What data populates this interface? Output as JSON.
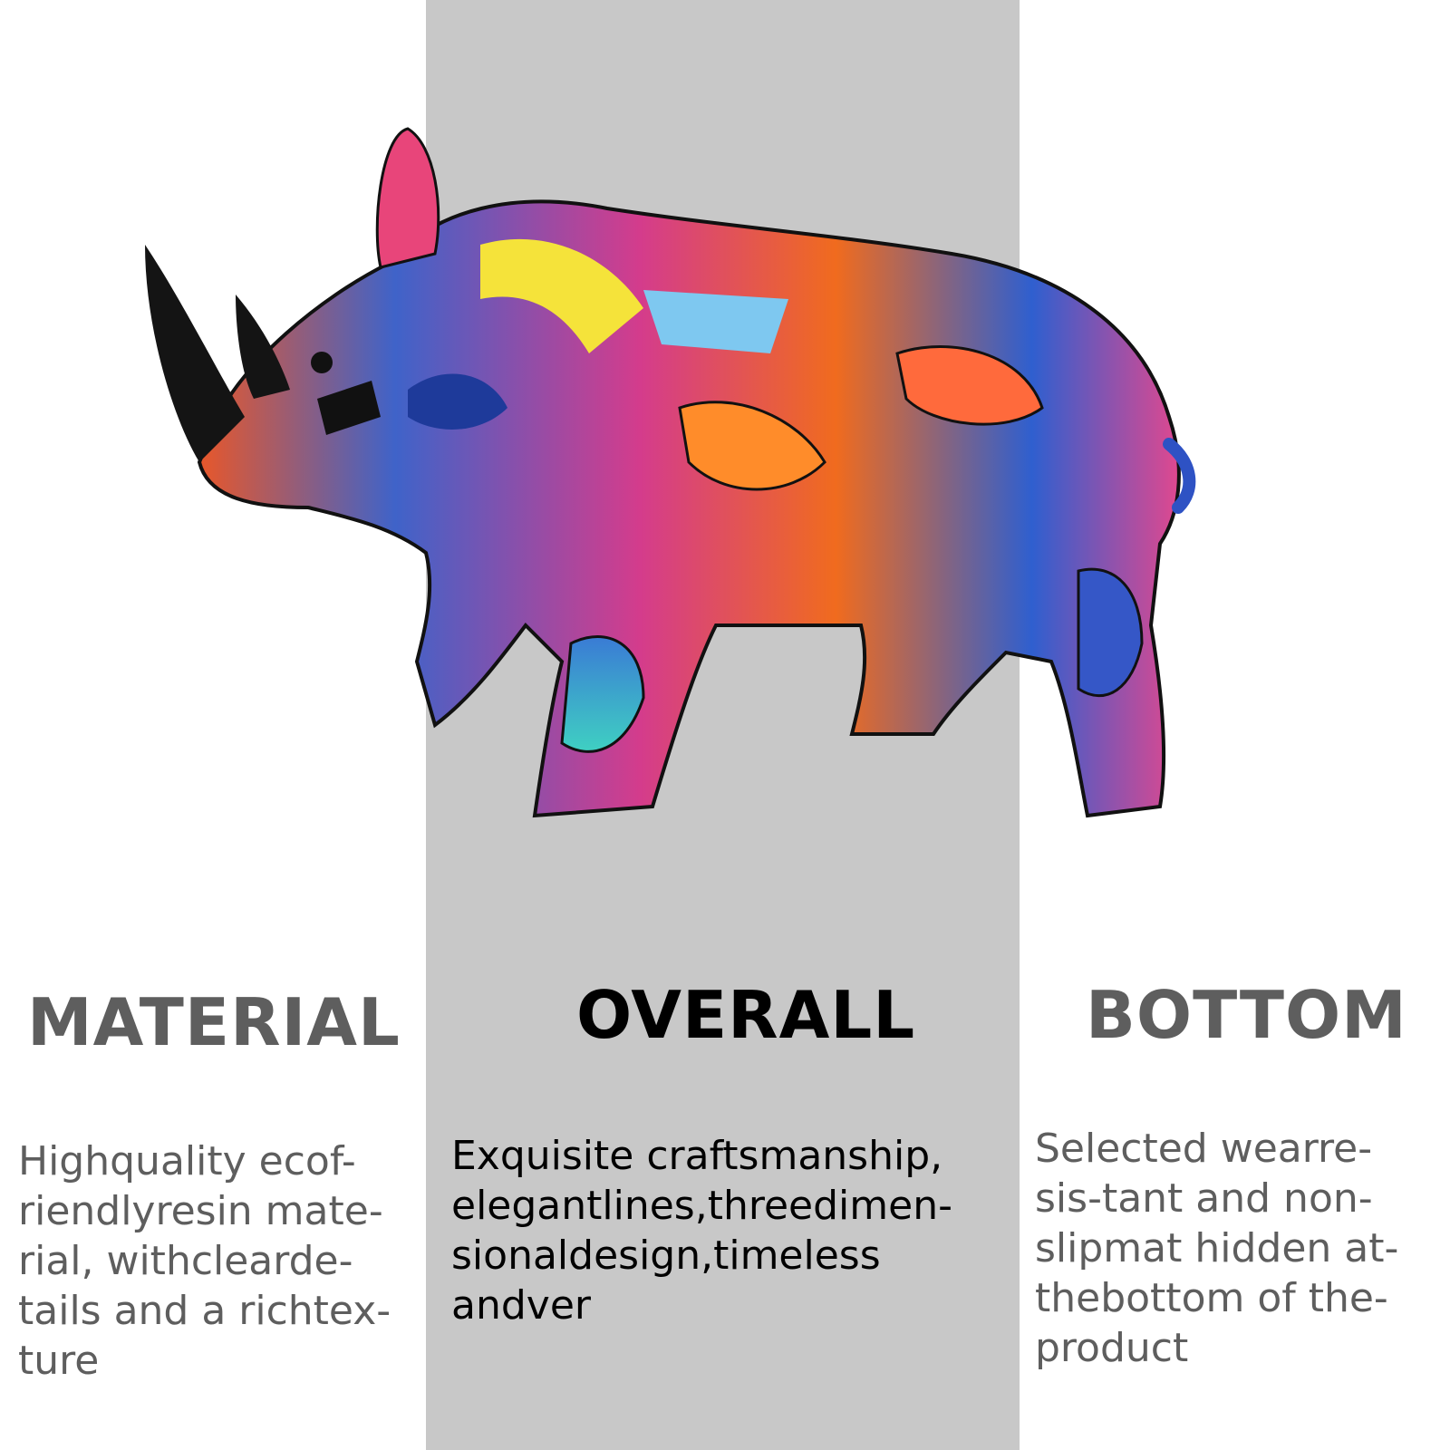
{
  "colors": {
    "band": "#c8c8c8",
    "side_text": "#5e5e5e",
    "center_text": "#000000"
  },
  "figure": {
    "icon": "rhino-sculpture-icon"
  },
  "columns": {
    "left": {
      "heading": "MATERIAL",
      "body": "Highquality ecof- riendlyresin mate- rial, withclearde- tails and a richtex- ture"
    },
    "middle": {
      "heading": "OVERALL",
      "body": "Exquisite craftsmanship, elegantlines,threedimen- sionaldesign,timeless andver"
    },
    "right": {
      "heading": "BOTTOM",
      "body": "Selected wearre- sis-tant and non- slipmat hidden at- thebottom of the- product"
    }
  }
}
